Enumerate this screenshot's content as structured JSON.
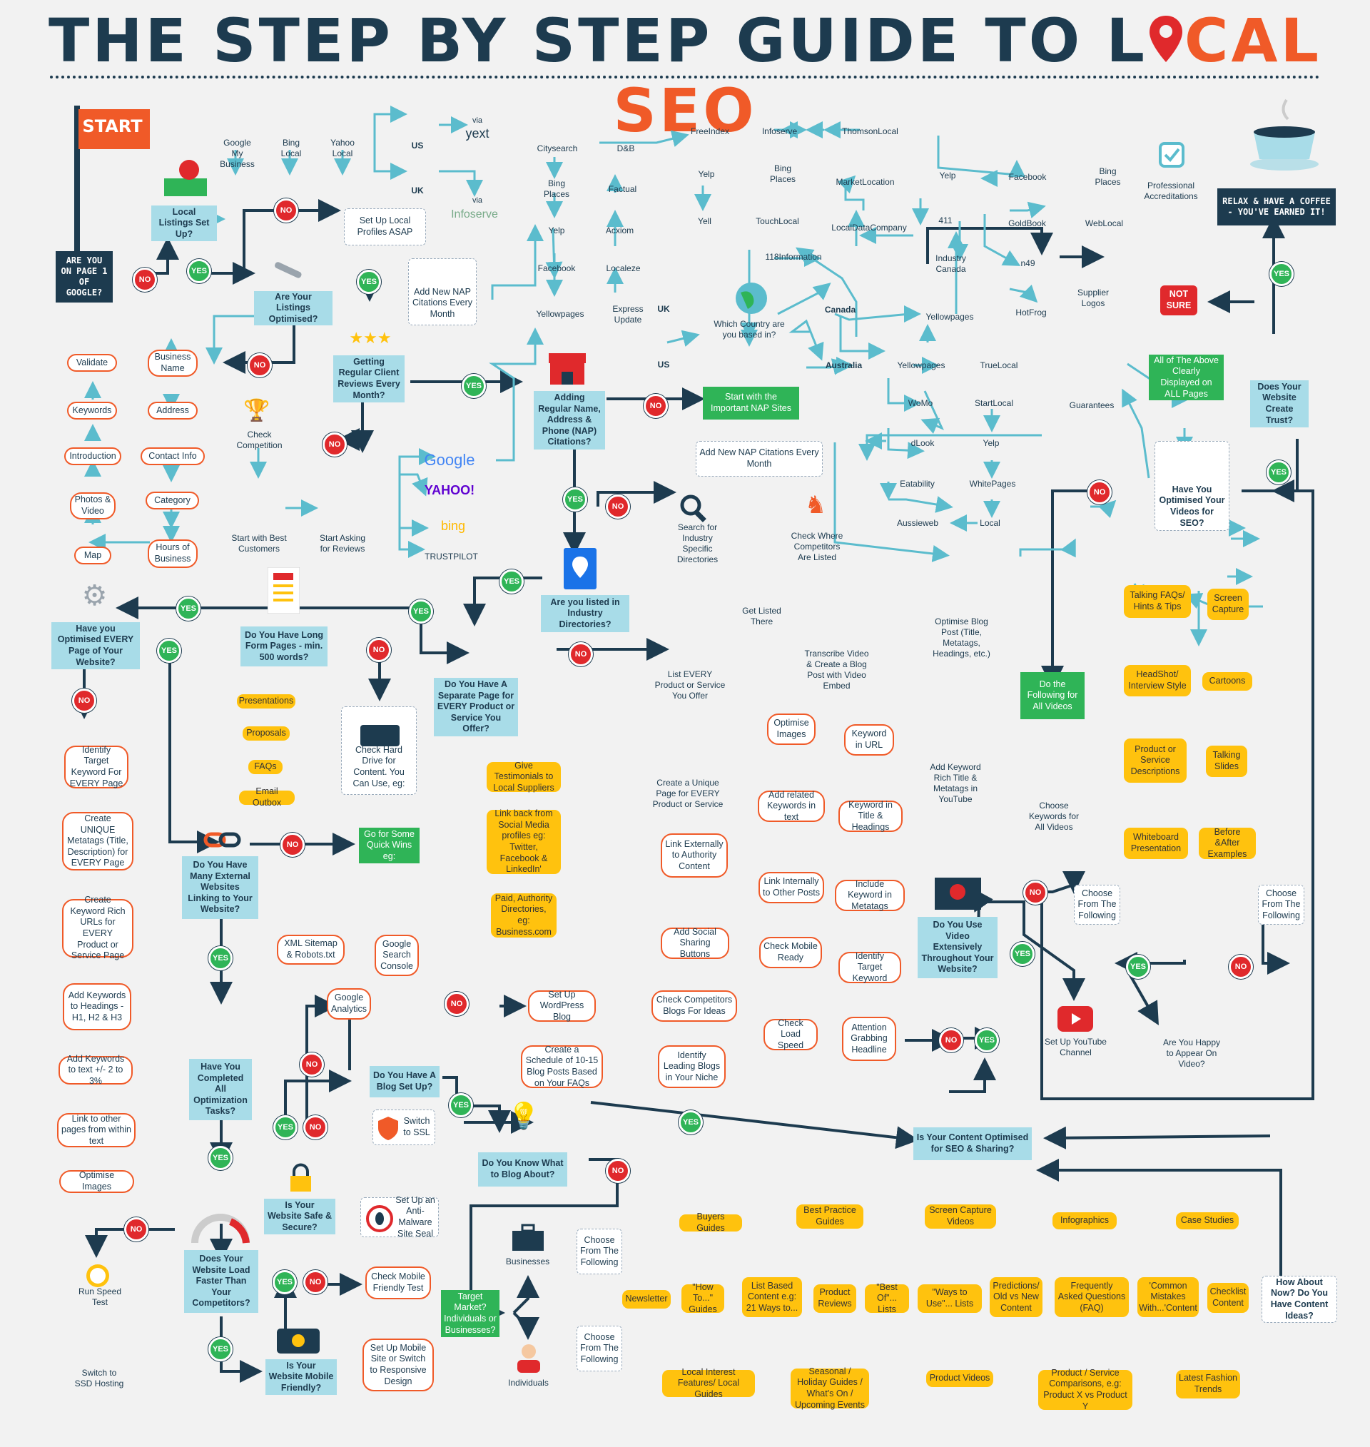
{
  "title_main": "THE STEP BY STEP GUIDE TO L",
  "title_hl": "CAL SEO",
  "badge_no": "NO",
  "badge_yes": "YES",
  "colors": {
    "navy": "#1d3b4f",
    "orange": "#f05a28",
    "green": "#2fb457",
    "blue": "#a8dce8",
    "yellow": "#ffc20e",
    "red": "#e0292c"
  },
  "icons": [
    "map-pin-icon",
    "flag-icon",
    "wrench-icon",
    "star-icon",
    "trophy-icon",
    "store-icon",
    "globe-icon",
    "magnifier-icon",
    "chess-knight-icon",
    "map-app-icon",
    "document-icon",
    "chain-link-icon",
    "gear-icon",
    "padlock-icon",
    "phone-icon",
    "speedometer-icon",
    "stopwatch-icon",
    "hard-drive-icon",
    "video-player-icon",
    "youtube-icon",
    "lightbulb-icon",
    "briefcase-icon",
    "person-icon",
    "coffee-cup-icon",
    "shield-icon",
    "bug-icon",
    "checkmark-icon"
  ],
  "nodes": {
    "start": "START",
    "q_google": "ARE YOU ON PAGE 1 OF GOOGLE?",
    "q_local": "Local Listings Set Up?",
    "setup_local": "Set Up Local Profiles ASAP",
    "gmb": "Google My Business",
    "bing_local": "Bing Local",
    "yahoo_local": "Yahoo Local",
    "us1": "US",
    "uk1": "UK",
    "via_yext": "via",
    "yext": "yext",
    "via_infoserve": "via",
    "infoserve": "Infoserve",
    "q_listings_opt": "Are Your Listings Optimised?",
    "validate": "Validate",
    "keywords": "Keywords",
    "introduction": "Introduction",
    "photos_video": "Photos & Video",
    "map": "Map",
    "business_name": "Business Name",
    "address": "Address",
    "contact_info": "Contact Info",
    "category": "Category",
    "hours": "Hours of Business",
    "q_reviews": "Getting Regular Client Reviews Every Month?",
    "check_comp": "Check Competition",
    "start_best": "Start with Best Customers",
    "start_asking": "Start Asking for Reviews",
    "google": "Google",
    "yahoo": "YAHOO!",
    "bing": "bing",
    "trustpilot": "TRUSTPILOT",
    "add_nap_month": "Add New NAP Citations Every Month",
    "q_nap": "Adding Regular Name, Address & Phone (NAP) Citations?",
    "start_nap": "Start with the Important NAP Sites",
    "q_country": "Which Country are you based in?",
    "uk2": "UK",
    "us2": "US",
    "canada": "Canada",
    "australia": "Australia",
    "citysearch": "Citysearch",
    "db": "D&B",
    "bing_places1": "Bing Places",
    "factual": "Factual",
    "yelp1": "Yelp",
    "acxiom": "Acxiom",
    "facebook1": "Facebook",
    "localeze": "Localeze",
    "yellowpages1": "Yellowpages",
    "express": "Express Update",
    "freeindex": "FreeIndex",
    "infoserve2": "Infoserve",
    "thomson": "ThomsonLocal",
    "yelp2": "Yelp",
    "bing_places2": "Bing Places",
    "marketlocation": "MarketLocation",
    "yell": "Yell",
    "touchlocal": "TouchLocal",
    "localdata": "LocalDataCompany",
    "info118": "118Information",
    "yelp3": "Yelp",
    "c411": "411",
    "industry_canada": "Industry Canada",
    "yellowpages_ca": "Yellowpages",
    "facebook2": "Facebook",
    "bing_places3": "Bing Places",
    "goldbook": "GoldBook",
    "weblocal": "WebLocal",
    "n49": "n49",
    "hotfrog": "HotFrog",
    "yellowpages_au": "Yellowpages",
    "truelocal": "TrueLocal",
    "womo": "WoMo",
    "startlocal": "StartLocal",
    "dlook": "dLook",
    "yelp_au": "Yelp",
    "eatability": "Eatability",
    "whitepages": "WhitePages",
    "aussieweb": "Aussieweb",
    "local": "Local",
    "add_nap_month2": "Add New NAP Citations Every Month",
    "pro_accred": "Professional Accreditations",
    "supplier_logos": "Supplier Logos",
    "guarantees": "Guarantees",
    "all_above": "All of The Above Clearly Displayed on ALL Pages",
    "not_sure": "NOT SURE",
    "q_trust": "Does Your Website Create Trust?",
    "relax": "RELAX & HAVE A COFFEE - YOU'VE EARNED IT!",
    "search_dirs": "Search for Industry Specific Directories",
    "check_where": "Check Where Competitors Are Listed",
    "q_dirs": "Are you listed in Industry Directories?",
    "get_listed": "Get Listed There",
    "q_every_page": "Have you Optimised EVERY Page of Your Website?",
    "q_longform": "Do You Have Long Form Pages - min. 500 words?",
    "q_separate": "Do You Have A Separate Page for EVERY Product or Service You Offer?",
    "list_every": "List EVERY Product or Service You Offer",
    "unique_page": "Create a Unique Page for EVERY Product or Service",
    "presentations": "Presentations",
    "proposals": "Proposals",
    "faqs": "FAQs",
    "email_outbox": "Email Outbox",
    "check_drive": "Check Hard Drive for Content. You Can Use, eg:",
    "identify_kw": "Identify Target Keyword For EVERY Page",
    "unique_meta": "Create UNIQUE Metatags (Title, Description) for EVERY Page",
    "kw_urls": "Create Keyword Rich URLs for EVERY Product or Service Page",
    "kw_headings": "Add Keywords to Headings - H1, H2 & H3",
    "kw_text": "Add Keywords to text +/- 2 to 3%",
    "link_pages": "Link to other pages from within text",
    "opt_images": "Optimise Images",
    "q_external": "Do You Have Many External Websites Linking to Your Website?",
    "quick_wins": "Go for Some Quick Wins eg:",
    "testimonials": "Give Testimonials to Local Suppliers",
    "link_back": "Link back from Social Media profiles eg: Twitter, Facebook & LinkedIn'",
    "paid_dirs": "Paid, Authority Directories, eg: Business.com",
    "xml": "XML Sitemap & Robots.txt",
    "gsc": "Google Search Console",
    "ga": "Google Analytics",
    "q_tasks": "Have You Completed All Optimization Tasks?",
    "q_blog": "Do You Have A Blog Set Up?",
    "setup_wp": "Set Up WordPress Blog",
    "check_comp_blogs": "Check Competitors Blogs For Ideas",
    "schedule": "Create a Schedule of 10-15 Blog Posts Based on Your FAQs",
    "leading_blogs": "Identify Leading Blogs in Your Niche",
    "switch_ssl": "Switch to SSL",
    "q_secure": "Is Your Website Safe & Secure?",
    "malware": "Set Up an Anti-Malware Site Seal",
    "q_blog_about": "Do You Know What to Blog About?",
    "q_faster": "Does Your Website Load Faster Than Your Competitors?",
    "run_speed": "Run Speed Test",
    "ssd": "Switch to SSD Hosting",
    "q_mobile": "Is Your Website Mobile Friendly?",
    "check_mobile": "Check Mobile Friendly Test",
    "setup_mobile": "Set Up Mobile Site or Switch to Responsive Design",
    "opt_images2": "Optimise Images",
    "add_related": "Add related Keywords in text",
    "link_internal": "Link Internally to Other Posts",
    "link_external": "Link Externally to Authority Content",
    "add_social": "Add Social Sharing Buttons",
    "check_mobile_ready": "Check Mobile Ready",
    "check_load": "Check Load Speed",
    "kw_url": "Keyword in URL",
    "kw_title": "Keyword in Title & Headings",
    "kw_meta": "Include Keyword in Metatags",
    "identify_target": "Identify Target Keyword",
    "attention": "Attention Grabbing Headline",
    "transcribe": "Transcribe Video & Create a Blog Post with Video Embed",
    "opt_blog_post": "Optimise Blog Post (Title, Metatags, Headings, etc.)",
    "add_kw_youtube": "Add Keyword Rich Title & Metatags in YouTube",
    "q_content_opt": "Is Your Content Optimised for SEO & Sharing?",
    "q_video": "Do You Use Video Extensively Throughout Your Website?",
    "q_opt_videos": "Have You Optimised Your Videos for SEO?",
    "do_following": "Do the Following for All Videos",
    "choose_kw_videos": "Choose Keywords for All Videos",
    "setup_youtube": "Set Up YouTube Channel",
    "q_appear": "Are You Happy to Appear On Video?",
    "choose_from1": "Choose From The Following",
    "choose_from2": "Choose From The Following",
    "talking_faqs": "Talking FAQs/ Hints & Tips",
    "screen_capture": "Screen Capture",
    "headshot": "HeadShot/ Interview Style",
    "cartoons": "Cartoons",
    "product_desc": "Product or Service Descriptions",
    "talking_slides": "Talking Slides",
    "whiteboard": "Whiteboard Presentation",
    "before_after": "Before &After Examples",
    "target_market": "Target Market? Individuals or Businesses?",
    "businesses": "Businesses",
    "individuals": "Individuals",
    "choose_b": "Choose From The Following",
    "choose_i": "Choose From The Following",
    "buyers_guides": "Buyers Guides",
    "best_practice": "Best Practice Guides",
    "screen_capture_videos": "Screen Capture Videos",
    "infographics": "Infographics",
    "case_studies": "Case Studies",
    "newsletter": "Newsletter",
    "how_to": "\"How To...\" Guides",
    "list_based": "List Based Content e.g: 21 Ways to...",
    "product_reviews": "Product Reviews",
    "best_of": "\"Best Of\"... Lists",
    "ways_to_use": "\"Ways to Use\"... Lists",
    "predictions": "Predictions/ Old vs New Content",
    "faq_content": "Frequently Asked Questions (FAQ)",
    "common_mistakes": "'Common Mistakes With...'Content",
    "checklist": "Checklist Content",
    "local_interest": "Local Interest Features/ Local Guides",
    "seasonal": "Seasonal / Holiday Guides / What's On / Upcoming Events",
    "product_videos": "Product Videos",
    "comparisons": "Product / Service Comparisons, e.g: Product X vs Product Y",
    "fashion": "Latest Fashion Trends",
    "how_about_now": "How About Now? Do You Have Content Ideas?"
  }
}
